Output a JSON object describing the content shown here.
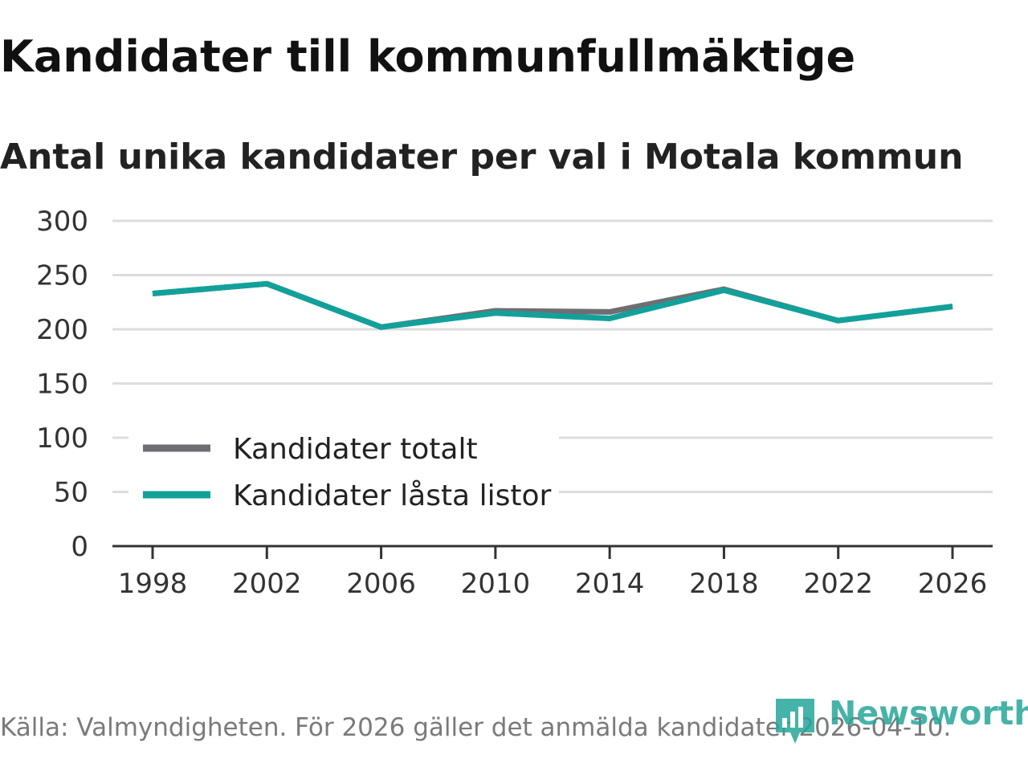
{
  "title": "Kandidater till kommunfullmäktige",
  "subtitle": "Antal unika kandidater per val i Motala kommun",
  "source": "Källa: Valmyndigheten. För 2026 gäller det anmälda kandidater 2026-04-10.",
  "brand": "Newsworthy",
  "colors": {
    "total": "#6e6e73",
    "locked": "#12a19a",
    "grid": "#dddddd",
    "axis": "#333333",
    "brand": "#26a69a"
  },
  "chart_data": {
    "type": "line",
    "title": "Kandidater till kommunfullmäktige",
    "subtitle": "Antal unika kandidater per val i Motala kommun",
    "xlabel": "",
    "ylabel": "",
    "x": [
      "1998",
      "2002",
      "2006",
      "2010",
      "2014",
      "2018",
      "2022",
      "2026"
    ],
    "ylim": [
      0,
      300
    ],
    "yticks": [
      0,
      50,
      100,
      150,
      200,
      250,
      300
    ],
    "grid": true,
    "legend_position": "bottom-left",
    "series": [
      {
        "name": "Kandidater totalt",
        "values": [
          233,
          242,
          202,
          217,
          216,
          237,
          208,
          221
        ]
      },
      {
        "name": "Kandidater låsta listor",
        "values": [
          233,
          242,
          202,
          215,
          210,
          236,
          208,
          221
        ]
      }
    ]
  }
}
